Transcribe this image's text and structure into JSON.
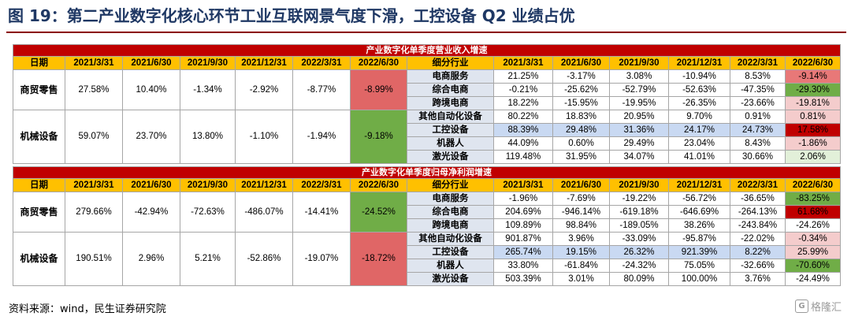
{
  "title": "图 19：第二产业数字化核心环节工业互联网景气度下滑，工控设备 Q2 业绩占优",
  "source": "资料来源：wind，民生证券研究院",
  "watermark": "格隆汇",
  "header": {
    "date_label": "日期",
    "dates": [
      "2021/3/31",
      "2021/6/30",
      "2021/9/30",
      "2021/12/31",
      "2022/3/31",
      "2022/6/30"
    ],
    "sub_label": "细分行业"
  },
  "tables": [
    {
      "banner": "产业数字化单季度营业收入增速",
      "groups": [
        {
          "name": "商贸零售",
          "values": [
            "27.58%",
            "10.40%",
            "-1.34%",
            "-2.92%",
            "-8.77%",
            "-8.99%"
          ],
          "subs": [
            {
              "name": "电商服务",
              "values": [
                "21.25%",
                "-3.17%",
                "3.08%",
                "-10.94%",
                "8.53%",
                "-9.14%"
              ]
            },
            {
              "name": "综合电商",
              "values": [
                "-0.21%",
                "-25.62%",
                "-52.79%",
                "-52.63%",
                "-47.35%",
                "-29.30%"
              ]
            },
            {
              "name": "跨境电商",
              "values": [
                "18.22%",
                "-15.95%",
                "-19.95%",
                "-26.35%",
                "-23.66%",
                "-19.81%"
              ]
            }
          ]
        },
        {
          "name": "机械设备",
          "values": [
            "59.07%",
            "23.70%",
            "13.80%",
            "-1.10%",
            "-1.94%",
            "-9.18%"
          ],
          "subs": [
            {
              "name": "其他自动化设备",
              "values": [
                "80.22%",
                "18.83%",
                "20.95%",
                "9.70%",
                "0.91%",
                "0.81%"
              ]
            },
            {
              "name": "工控设备",
              "values": [
                "88.39%",
                "29.48%",
                "31.36%",
                "24.17%",
                "24.73%",
                "17.58%"
              ]
            },
            {
              "name": "机器人",
              "values": [
                "44.09%",
                "0.60%",
                "29.49%",
                "23.04%",
                "8.43%",
                "-1.86%"
              ]
            },
            {
              "name": "激光设备",
              "values": [
                "119.48%",
                "31.95%",
                "34.07%",
                "41.01%",
                "30.66%",
                "2.06%"
              ]
            }
          ]
        }
      ]
    },
    {
      "banner": "产业数字化单季度归母净利润增速",
      "groups": [
        {
          "name": "商贸零售",
          "values": [
            "279.66%",
            "-42.94%",
            "-72.63%",
            "-486.07%",
            "-14.41%",
            "-24.52%"
          ],
          "subs": [
            {
              "name": "电商服务",
              "values": [
                "-1.96%",
                "-7.69%",
                "-19.22%",
                "-56.72%",
                "-36.65%",
                "-83.25%"
              ]
            },
            {
              "name": "综合电商",
              "values": [
                "204.69%",
                "-946.14%",
                "-619.18%",
                "-646.69%",
                "-264.13%",
                "61.68%"
              ]
            },
            {
              "name": "跨境电商",
              "values": [
                "109.89%",
                "98.84%",
                "-189.05%",
                "38.26%",
                "-243.84%",
                "-24.26%"
              ]
            }
          ]
        },
        {
          "name": "机械设备",
          "values": [
            "190.51%",
            "2.96%",
            "5.21%",
            "-52.86%",
            "-19.07%",
            "-18.72%"
          ],
          "subs": [
            {
              "name": "其他自动化设备",
              "values": [
                "901.87%",
                "3.96%",
                "-33.09%",
                "-95.87%",
                "-22.02%",
                "-0.34%"
              ]
            },
            {
              "name": "工控设备",
              "values": [
                "265.74%",
                "19.15%",
                "26.32%",
                "921.39%",
                "8.22%",
                "25.99%"
              ]
            },
            {
              "name": "机器人",
              "values": [
                "33.80%",
                "-61.84%",
                "-24.32%",
                "75.05%",
                "-32.66%",
                "-70.60%"
              ]
            },
            {
              "name": "激光设备",
              "values": [
                "503.39%",
                "3.01%",
                "80.09%",
                "100.00%",
                "3.76%",
                "-24.49%"
              ]
            }
          ]
        }
      ]
    }
  ],
  "highlight": {
    "group_last_cells": [
      [
        "red",
        "green"
      ],
      [
        "green",
        "red"
      ]
    ],
    "sub_last_cells": [
      [
        "light-red",
        "strong-green",
        "pale-red",
        "pale-red",
        "strong-red",
        "pale-red",
        "pale-green"
      ],
      [
        "strong-green",
        "strong-red",
        "white",
        "pale-red",
        "pale-red",
        "strong-green",
        "white"
      ]
    ]
  }
}
